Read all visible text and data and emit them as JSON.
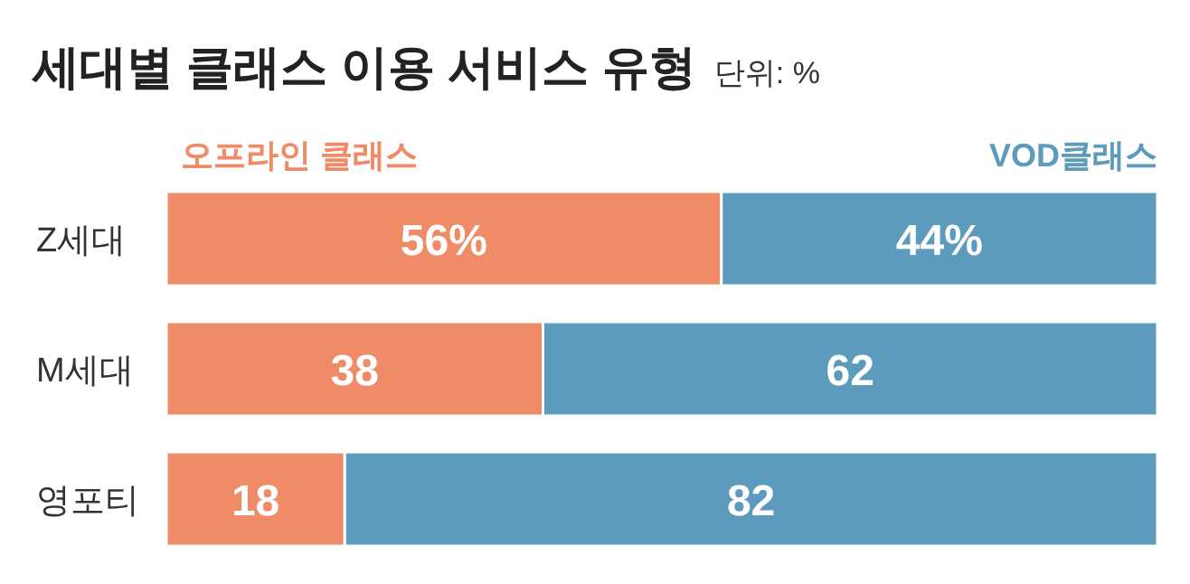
{
  "chart_data": {
    "type": "bar",
    "orientation": "horizontal",
    "stacked": true,
    "title": "세대별 클래스 이용 서비스 유형",
    "subtitle": "단위: %",
    "categories": [
      "Z세대",
      "M세대",
      "영포티"
    ],
    "xlim": [
      0,
      100
    ],
    "tick_labels": "y",
    "legend": "top",
    "series": [
      {
        "name": "오프라인 클래스",
        "color": "#ef8c67",
        "values": [
          56,
          38,
          18
        ],
        "value_labels": [
          "56%",
          "38",
          "18"
        ]
      },
      {
        "name": "VOD클래스",
        "color": "#5c9bbb",
        "values": [
          44,
          62,
          82
        ],
        "value_labels": [
          "44%",
          "62",
          "82"
        ]
      }
    ]
  }
}
